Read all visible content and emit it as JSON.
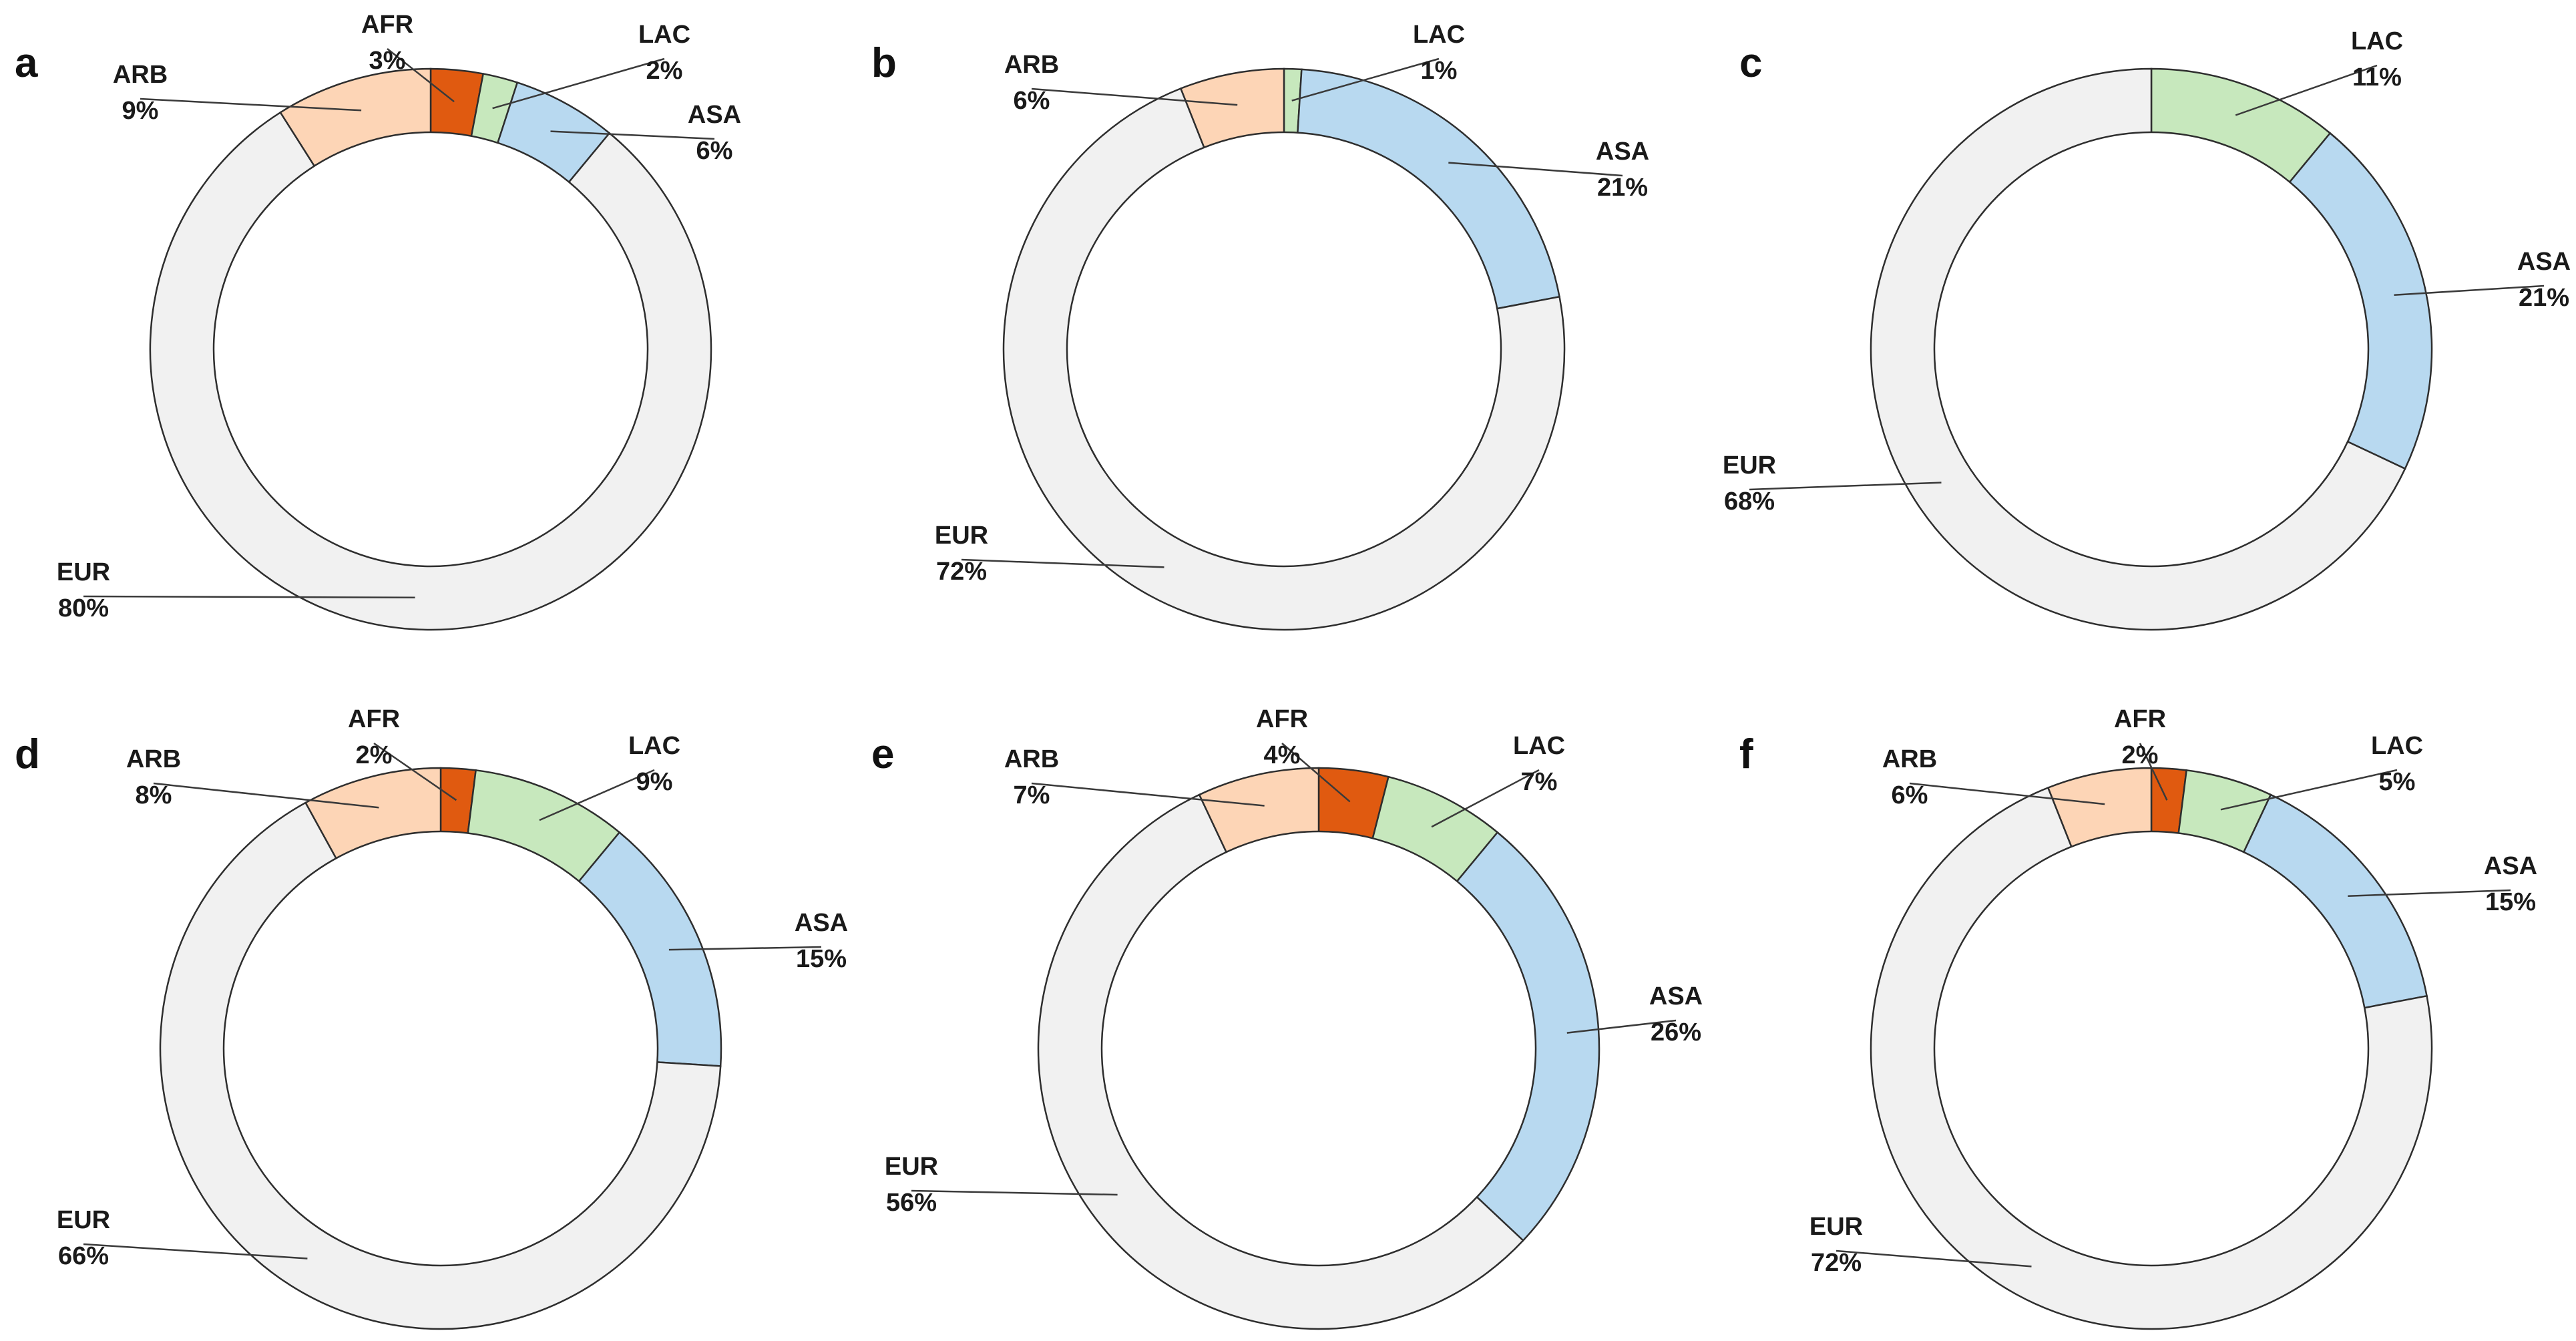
{
  "colors": {
    "EUR": "#f1f1f1",
    "ARB": "#fdd5b6",
    "AFR": "#e05a10",
    "LAC": "#c7e8bd",
    "ASA": "#b8d9f0"
  },
  "chart_data": [
    {
      "type": "pie",
      "panel": "a",
      "slices": [
        {
          "label": "AFR",
          "value": 3,
          "value_text": "3%"
        },
        {
          "label": "LAC",
          "value": 2,
          "value_text": "2%"
        },
        {
          "label": "ASA",
          "value": 6,
          "value_text": "6%"
        },
        {
          "label": "EUR",
          "value": 80,
          "value_text": "80%"
        },
        {
          "label": "ARB",
          "value": 9,
          "value_text": "9%"
        }
      ]
    },
    {
      "type": "pie",
      "panel": "b",
      "slices": [
        {
          "label": "LAC",
          "value": 1,
          "value_text": "1%"
        },
        {
          "label": "ASA",
          "value": 21,
          "value_text": "21%"
        },
        {
          "label": "EUR",
          "value": 72,
          "value_text": "72%"
        },
        {
          "label": "ARB",
          "value": 6,
          "value_text": "6%"
        }
      ]
    },
    {
      "type": "pie",
      "panel": "c",
      "slices": [
        {
          "label": "LAC",
          "value": 11,
          "value_text": "11%"
        },
        {
          "label": "ASA",
          "value": 21,
          "value_text": "21%"
        },
        {
          "label": "EUR",
          "value": 68,
          "value_text": "68%"
        }
      ]
    },
    {
      "type": "pie",
      "panel": "d",
      "slices": [
        {
          "label": "AFR",
          "value": 2,
          "value_text": "2%"
        },
        {
          "label": "LAC",
          "value": 9,
          "value_text": "9%"
        },
        {
          "label": "ASA",
          "value": 15,
          "value_text": "15%"
        },
        {
          "label": "EUR",
          "value": 66,
          "value_text": "66%"
        },
        {
          "label": "ARB",
          "value": 8,
          "value_text": "8%"
        }
      ]
    },
    {
      "type": "pie",
      "panel": "e",
      "slices": [
        {
          "label": "AFR",
          "value": 4,
          "value_text": "4%"
        },
        {
          "label": "LAC",
          "value": 7,
          "value_text": "7%"
        },
        {
          "label": "ASA",
          "value": 26,
          "value_text": "26%"
        },
        {
          "label": "EUR",
          "value": 56,
          "value_text": "56%"
        },
        {
          "label": "ARB",
          "value": 7,
          "value_text": "7%"
        }
      ]
    },
    {
      "type": "pie",
      "panel": "f",
      "slices": [
        {
          "label": "AFR",
          "value": 2,
          "value_text": "2%"
        },
        {
          "label": "LAC",
          "value": 5,
          "value_text": "5%"
        },
        {
          "label": "ASA",
          "value": 15,
          "value_text": "15%"
        },
        {
          "label": "EUR",
          "value": 72,
          "value_text": "72%"
        },
        {
          "label": "ARB",
          "value": 6,
          "value_text": "6%"
        }
      ]
    }
  ]
}
